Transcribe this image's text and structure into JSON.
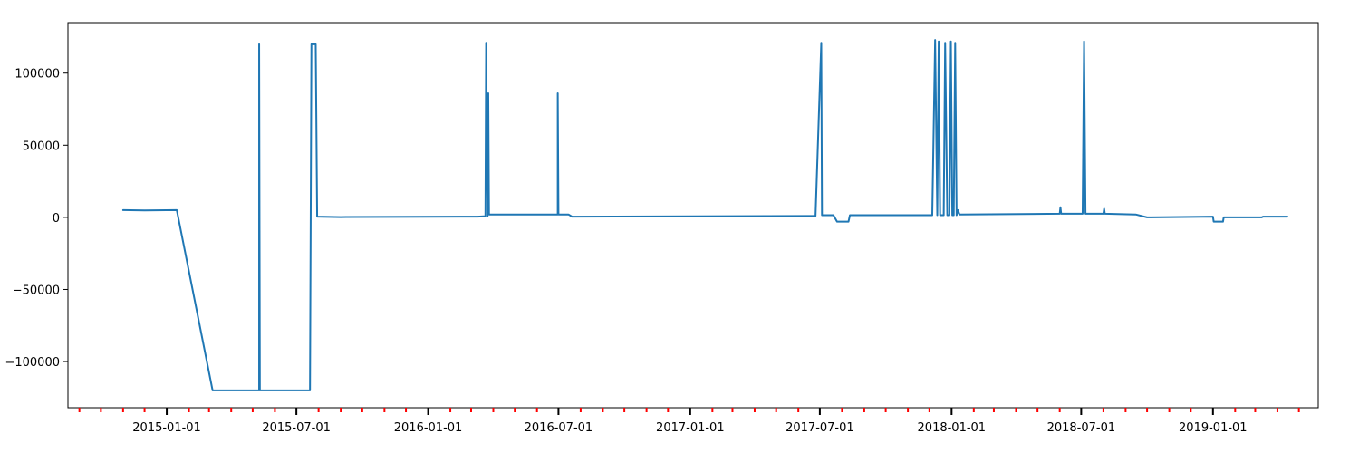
{
  "chart_data": {
    "type": "line",
    "title": "",
    "xlabel": "",
    "ylabel": "",
    "x_axis_kind": "date",
    "xlim": [
      "2014-08-16",
      "2019-05-28"
    ],
    "ylim": [
      -132000,
      135000
    ],
    "grid": false,
    "legend": "none",
    "y_ticks": [
      -100000,
      -50000,
      0,
      50000,
      100000
    ],
    "y_tick_labels": [
      "−100000",
      "−50000",
      "0",
      "50000",
      "100000"
    ],
    "x_major_ticks": [
      "2015-01-01",
      "2015-07-01",
      "2016-01-01",
      "2016-07-01",
      "2017-01-01",
      "2017-07-01",
      "2018-01-01",
      "2018-07-01",
      "2019-01-01"
    ],
    "x_major_tick_labels": [
      "2015-01-01",
      "2015-07-01",
      "2016-01-01",
      "2016-07-01",
      "2017-01-01",
      "2017-07-01",
      "2018-01-01",
      "2018-07-01",
      "2019-01-01"
    ],
    "major_tick_color": "#000000",
    "x_minor_ticks": [
      "2014-09-01",
      "2014-10-01",
      "2014-11-01",
      "2014-12-01",
      "2015-02-01",
      "2015-03-01",
      "2015-04-01",
      "2015-05-01",
      "2015-06-01",
      "2015-08-01",
      "2015-09-01",
      "2015-10-01",
      "2015-11-01",
      "2015-12-01",
      "2016-02-01",
      "2016-03-01",
      "2016-04-01",
      "2016-05-01",
      "2016-06-01",
      "2016-08-01",
      "2016-09-01",
      "2016-10-01",
      "2016-11-01",
      "2016-12-01",
      "2017-02-01",
      "2017-03-01",
      "2017-04-01",
      "2017-05-01",
      "2017-06-01",
      "2017-08-01",
      "2017-09-01",
      "2017-10-01",
      "2017-11-01",
      "2017-12-01",
      "2018-02-01",
      "2018-03-01",
      "2018-04-01",
      "2018-05-01",
      "2018-06-01",
      "2018-08-01",
      "2018-09-01",
      "2018-10-01",
      "2018-11-01",
      "2018-12-01",
      "2019-02-01",
      "2019-03-01",
      "2019-04-01",
      "2019-05-01"
    ],
    "minor_tick_color": "#ff0000",
    "series": [
      {
        "color": "#1f77b4",
        "points": [
          [
            "2014-11-01",
            5000
          ],
          [
            "2014-12-01",
            4800
          ],
          [
            "2015-01-15",
            5000
          ],
          [
            "2015-03-06",
            -120000
          ],
          [
            "2015-05-10",
            -120000
          ],
          [
            "2015-05-10",
            120000
          ],
          [
            "2015-05-11",
            -120000
          ],
          [
            "2015-07-20",
            -120000
          ],
          [
            "2015-07-22",
            120000
          ],
          [
            "2015-07-28",
            120000
          ],
          [
            "2015-07-30",
            500
          ],
          [
            "2015-09-01",
            200
          ],
          [
            "2016-03-10",
            500
          ],
          [
            "2016-03-21",
            800
          ],
          [
            "2016-03-22",
            121000
          ],
          [
            "2016-03-24",
            800
          ],
          [
            "2016-03-25",
            86000
          ],
          [
            "2016-03-26",
            2000
          ],
          [
            "2016-06-30",
            2000
          ],
          [
            "2016-06-30",
            86000
          ],
          [
            "2016-07-01",
            2000
          ],
          [
            "2016-07-15",
            2000
          ],
          [
            "2016-07-20",
            500
          ],
          [
            "2017-06-25",
            1000
          ],
          [
            "2017-07-03",
            121000
          ],
          [
            "2017-07-04",
            1500
          ],
          [
            "2017-07-20",
            1500
          ],
          [
            "2017-07-25",
            -3000
          ],
          [
            "2017-08-10",
            -3000
          ],
          [
            "2017-08-12",
            1500
          ],
          [
            "2017-12-05",
            1500
          ],
          [
            "2017-12-09",
            123000
          ],
          [
            "2017-12-12",
            1500
          ],
          [
            "2017-12-14",
            122000
          ],
          [
            "2017-12-16",
            1500
          ],
          [
            "2017-12-21",
            1500
          ],
          [
            "2017-12-23",
            121000
          ],
          [
            "2017-12-26",
            1500
          ],
          [
            "2017-12-29",
            1500
          ],
          [
            "2017-12-31",
            122000
          ],
          [
            "2018-01-02",
            1500
          ],
          [
            "2018-01-04",
            1500
          ],
          [
            "2018-01-06",
            121000
          ],
          [
            "2018-01-08",
            1500
          ],
          [
            "2018-01-10",
            5000
          ],
          [
            "2018-01-12",
            2000
          ],
          [
            "2018-06-01",
            2500
          ],
          [
            "2018-06-02",
            7000
          ],
          [
            "2018-06-03",
            2500
          ],
          [
            "2018-07-03",
            2500
          ],
          [
            "2018-07-05",
            122000
          ],
          [
            "2018-07-07",
            2500
          ],
          [
            "2018-08-01",
            2500
          ],
          [
            "2018-08-02",
            6000
          ],
          [
            "2018-08-03",
            2500
          ],
          [
            "2018-09-15",
            2000
          ],
          [
            "2018-10-01",
            0
          ],
          [
            "2019-01-01",
            500
          ],
          [
            "2019-01-02",
            -3000
          ],
          [
            "2019-01-15",
            -3000
          ],
          [
            "2019-01-16",
            0
          ],
          [
            "2019-03-10",
            0
          ],
          [
            "2019-03-12",
            500
          ],
          [
            "2019-04-15",
            500
          ]
        ]
      }
    ]
  }
}
